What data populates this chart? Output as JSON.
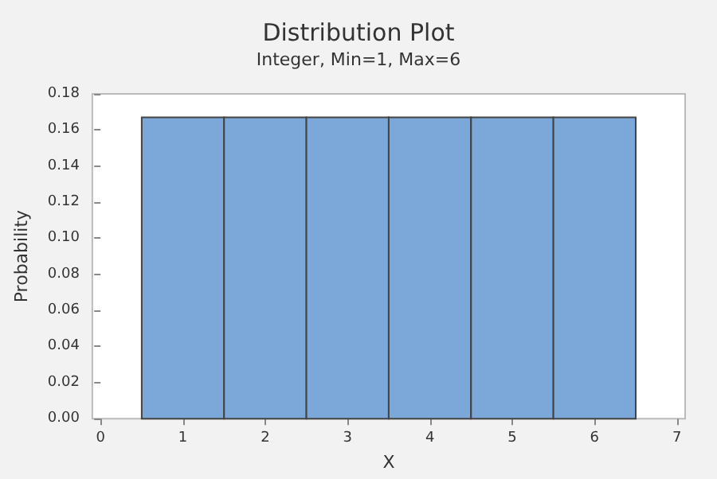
{
  "chart_data": {
    "type": "histogram",
    "title": "Distribution Plot",
    "subtitle": "Integer, Min=1, Max=6",
    "xlabel": "X",
    "ylabel": "Probability",
    "bins": [
      0.5,
      1.5,
      2.5,
      3.5,
      4.5,
      5.5,
      6.5
    ],
    "values": [
      0.167,
      0.167,
      0.167,
      0.167,
      0.167,
      0.167
    ],
    "color": "#7ba7d9",
    "xlim": [
      -0.1,
      7.1
    ],
    "xticks": [
      0,
      1,
      2,
      3,
      4,
      5,
      6,
      7
    ],
    "ylim": [
      0,
      0.18
    ],
    "yticks": [
      {
        "value": 0,
        "label": "0.00"
      },
      0.02,
      0.04,
      0.06,
      0.08,
      {
        "value": 0.1,
        "label": "0.10"
      },
      0.12,
      0.14,
      0.16,
      0.18
    ],
    "grid": false
  }
}
